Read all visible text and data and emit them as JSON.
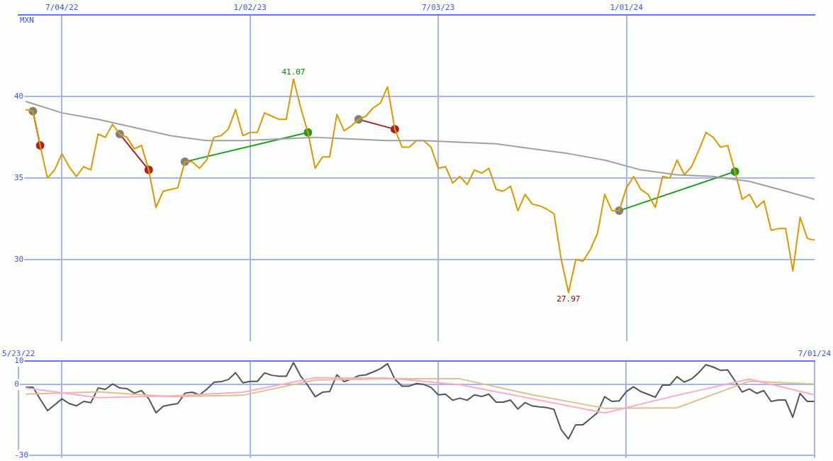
{
  "chart_data": [
    {
      "type": "line",
      "ylabel": "MXN",
      "grid": true,
      "marker": "none",
      "line_style": "solid",
      "x": [
        "2022-05-30",
        "2022-06-06",
        "2022-06-13",
        "2022-06-20",
        "2022-06-27",
        "2022-07-04",
        "2022-07-11",
        "2022-07-18",
        "2022-07-25",
        "2022-08-01",
        "2022-08-08",
        "2022-08-15",
        "2022-08-22",
        "2022-08-29",
        "2022-09-05",
        "2022-09-12",
        "2022-09-19",
        "2022-09-26",
        "2022-10-03",
        "2022-10-10",
        "2022-10-17",
        "2022-10-24",
        "2022-10-31",
        "2022-11-07",
        "2022-11-14",
        "2022-11-21",
        "2022-11-28",
        "2022-12-05",
        "2022-12-12",
        "2022-12-19",
        "2022-12-26",
        "2023-01-02",
        "2023-01-09",
        "2023-01-16",
        "2023-01-23",
        "2023-01-30",
        "2023-02-06",
        "2023-02-13",
        "2023-02-20",
        "2023-02-27",
        "2023-03-06",
        "2023-03-13",
        "2023-03-20",
        "2023-03-27",
        "2023-04-03",
        "2023-04-10",
        "2023-04-17",
        "2023-04-24",
        "2023-05-01",
        "2023-05-08",
        "2023-05-15",
        "2023-05-22",
        "2023-05-29",
        "2023-06-05",
        "2023-06-12",
        "2023-06-19",
        "2023-06-26",
        "2023-07-03",
        "2023-07-10",
        "2023-07-17",
        "2023-07-24",
        "2023-07-31",
        "2023-08-07",
        "2023-08-14",
        "2023-08-21",
        "2023-08-28",
        "2023-09-04",
        "2023-09-11",
        "2023-09-18",
        "2023-09-25",
        "2023-10-02",
        "2023-10-09",
        "2023-10-16",
        "2023-10-23",
        "2023-10-30",
        "2023-11-06",
        "2023-11-13",
        "2023-11-20",
        "2023-11-27",
        "2023-12-04",
        "2023-12-11",
        "2023-12-18",
        "2023-12-25",
        "2024-01-01",
        "2024-01-08",
        "2024-01-15",
        "2024-01-22",
        "2024-01-29",
        "2024-02-05",
        "2024-02-12",
        "2024-02-19",
        "2024-02-26",
        "2024-03-04",
        "2024-03-11",
        "2024-03-18",
        "2024-03-25",
        "2024-04-01",
        "2024-04-08",
        "2024-04-15",
        "2024-04-22",
        "2024-04-29",
        "2024-05-06",
        "2024-05-13",
        "2024-05-20",
        "2024-05-27",
        "2024-06-03",
        "2024-06-10",
        "2024-06-17",
        "2024-06-24",
        "2024-07-01"
      ],
      "series": [
        {
          "color": "#a0a0a0",
          "x": [
            "2022-05-30",
            "2022-07-04",
            "2022-08-08",
            "2022-09-12",
            "2022-10-17",
            "2022-11-21",
            "2022-12-26",
            "2023-01-30",
            "2023-03-06",
            "2023-04-10",
            "2023-05-15",
            "2023-06-19",
            "2023-07-24",
            "2023-08-28",
            "2023-10-02",
            "2023-11-06",
            "2023-12-11",
            "2024-01-15",
            "2024-02-19",
            "2024-03-25",
            "2024-04-29",
            "2024-06-03",
            "2024-07-01"
          ],
          "values": [
            39.7,
            39.0,
            38.6,
            38.1,
            37.6,
            37.3,
            37.3,
            37.4,
            37.5,
            37.4,
            37.3,
            37.3,
            37.2,
            37.1,
            36.8,
            36.5,
            36.1,
            35.5,
            35.2,
            35.1,
            34.8,
            34.2,
            33.7
          ]
        },
        {
          "color": "#dd9900",
          "values": [
            39.2,
            39.1,
            37.0,
            35.0,
            35.5,
            36.5,
            35.7,
            35.1,
            35.7,
            35.5,
            37.7,
            37.5,
            38.3,
            37.7,
            37.5,
            36.8,
            37.0,
            35.5,
            33.2,
            34.2,
            34.3,
            34.4,
            36.0,
            36.0,
            35.6,
            36.1,
            37.5,
            37.6,
            38.0,
            39.2,
            37.6,
            37.8,
            37.8,
            39.0,
            38.8,
            38.6,
            38.6,
            41.07,
            39.3,
            37.8,
            35.6,
            36.3,
            36.3,
            38.9,
            37.9,
            38.2,
            38.6,
            38.8,
            39.3,
            39.6,
            40.6,
            38.0,
            36.9,
            36.9,
            37.3,
            37.3,
            36.9,
            35.6,
            35.7,
            34.7,
            35.1,
            34.6,
            35.5,
            35.3,
            35.6,
            34.3,
            34.2,
            34.5,
            33.0,
            34.0,
            33.4,
            33.3,
            33.1,
            32.8,
            30.0,
            27.97,
            30.0,
            29.9,
            30.6,
            31.6,
            34.0,
            33.0,
            33.0,
            34.4,
            35.1,
            34.3,
            34.0,
            33.2,
            35.1,
            35.0,
            36.1,
            35.2,
            35.7,
            36.7,
            37.8,
            37.5,
            36.9,
            37.0,
            35.4,
            33.7,
            34.0,
            33.2,
            33.6,
            31.8,
            31.9,
            31.9,
            29.3,
            32.6,
            31.3,
            31.2
          ]
        },
        {
          "color": "#aa2222",
          "marker": "circle",
          "colors": [
            "#808080",
            "#aa2222"
          ],
          "x": [
            "2022-06-06",
            "2022-06-13"
          ],
          "values": [
            39.1,
            37.0
          ]
        },
        {
          "color": "#aa2222",
          "marker": "circle",
          "colors": [
            "#808080",
            "#aa2222"
          ],
          "x": [
            "2022-08-29",
            "2022-09-26"
          ],
          "values": [
            37.7,
            35.5
          ]
        },
        {
          "color": "#229922",
          "marker": "circle",
          "colors": [
            "#808080",
            "#229922"
          ],
          "x": [
            "2022-10-31",
            "2023-02-27"
          ],
          "values": [
            36.0,
            37.8
          ]
        },
        {
          "color": "#aa2222",
          "marker": "circle",
          "colors": [
            "#808080",
            "#aa2222"
          ],
          "x": [
            "2023-04-17",
            "2023-05-22"
          ],
          "values": [
            38.6,
            38.0
          ]
        },
        {
          "color": "#229922",
          "marker": "circle",
          "colors": [
            "#808080",
            "#229922"
          ],
          "x": [
            "2023-12-25",
            "2024-04-15"
          ],
          "values": [
            33.0,
            35.4
          ]
        }
      ],
      "xlim": [
        "2022-05-23",
        "2024-07-01"
      ],
      "xticks": [
        {
          "value": "2022-07-04",
          "label": "7/04/22"
        },
        {
          "value": "2023-01-02",
          "label": "1/02/23"
        },
        {
          "value": "2023-07-03",
          "label": "7/03/23"
        },
        {
          "value": "2024-01-01",
          "label": "1/01/24"
        }
      ],
      "ylim": [
        25,
        45
      ],
      "yticks": [
        30,
        35,
        40
      ],
      "annotations": [
        {
          "text": "41.07",
          "x": "2023-02-13",
          "y": 41.07
        },
        {
          "text": "27.97",
          "x": "2023-11-06",
          "y": 27.97
        }
      ]
    },
    {
      "type": "line",
      "grid": true,
      "marker": "none",
      "line_style": "solid",
      "x": [
        "2022-05-30",
        "2022-06-06",
        "2022-06-13",
        "2022-06-20",
        "2022-06-27",
        "2022-07-04",
        "2022-07-11",
        "2022-07-18",
        "2022-07-25",
        "2022-08-01",
        "2022-08-08",
        "2022-08-15",
        "2022-08-22",
        "2022-08-29",
        "2022-09-05",
        "2022-09-12",
        "2022-09-19",
        "2022-09-26",
        "2022-10-03",
        "2022-10-10",
        "2022-10-17",
        "2022-10-24",
        "2022-10-31",
        "2022-11-07",
        "2022-11-14",
        "2022-11-21",
        "2022-11-28",
        "2022-12-05",
        "2022-12-12",
        "2022-12-19",
        "2022-12-26",
        "2023-01-02",
        "2023-01-09",
        "2023-01-16",
        "2023-01-23",
        "2023-01-30",
        "2023-02-06",
        "2023-02-13",
        "2023-02-20",
        "2023-02-27",
        "2023-03-06",
        "2023-03-13",
        "2023-03-20",
        "2023-03-27",
        "2023-04-03",
        "2023-04-10",
        "2023-04-17",
        "2023-04-24",
        "2023-05-01",
        "2023-05-08",
        "2023-05-15",
        "2023-05-22",
        "2023-05-29",
        "2023-06-05",
        "2023-06-12",
        "2023-06-19",
        "2023-06-26",
        "2023-07-03",
        "2023-07-10",
        "2023-07-17",
        "2023-07-24",
        "2023-07-31",
        "2023-08-07",
        "2023-08-14",
        "2023-08-21",
        "2023-08-28",
        "2023-09-04",
        "2023-09-11",
        "2023-09-18",
        "2023-09-25",
        "2023-10-02",
        "2023-10-09",
        "2023-10-16",
        "2023-10-23",
        "2023-10-30",
        "2023-11-06",
        "2023-11-13",
        "2023-11-20",
        "2023-11-27",
        "2023-12-04",
        "2023-12-11",
        "2023-12-18",
        "2023-12-25",
        "2024-01-01",
        "2024-01-08",
        "2024-01-15",
        "2024-01-22",
        "2024-01-29",
        "2024-02-05",
        "2024-02-12",
        "2024-02-19",
        "2024-02-26",
        "2024-03-04",
        "2024-03-11",
        "2024-03-18",
        "2024-03-25",
        "2024-04-01",
        "2024-04-08",
        "2024-04-15",
        "2024-04-22",
        "2024-04-29",
        "2024-05-06",
        "2024-05-13",
        "2024-05-20",
        "2024-05-27",
        "2024-06-03",
        "2024-06-10",
        "2024-06-17",
        "2024-06-24",
        "2024-07-01"
      ],
      "series": [
        {
          "color": "#ffaacc",
          "x": [
            "2022-05-30",
            "2022-08-08",
            "2022-10-17",
            "2022-12-26",
            "2023-03-06",
            "2023-05-15",
            "2023-07-24",
            "2023-10-02",
            "2023-12-11",
            "2024-02-19",
            "2024-04-29",
            "2024-07-01"
          ],
          "values": [
            -1.4,
            -5.5,
            -4.8,
            -3.2,
            3.0,
            2.8,
            0.0,
            -6.0,
            -12.0,
            -4.5,
            2.4,
            -4.3
          ]
        },
        {
          "color": "#ddc090",
          "x": [
            "2022-05-30",
            "2022-08-08",
            "2022-10-17",
            "2022-12-26",
            "2023-03-06",
            "2023-05-15",
            "2023-07-24",
            "2023-10-02",
            "2023-12-11",
            "2024-02-19",
            "2024-04-29",
            "2024-07-01"
          ],
          "values": [
            -4.0,
            -3.0,
            -5.1,
            -4.5,
            2.0,
            2.5,
            2.5,
            -4.3,
            -10.0,
            -9.8,
            1.5,
            0.3
          ]
        },
        {
          "color": "#555555",
          "values": [
            -1.1,
            -1.1,
            -6.2,
            -11.0,
            -8.5,
            -6.0,
            -8.0,
            -9.0,
            -7.1,
            -7.6,
            -1.4,
            -2.0,
            0.3,
            -1.4,
            -1.7,
            -3.6,
            -2.5,
            -6.0,
            -11.9,
            -9.1,
            -8.5,
            -8.0,
            -3.6,
            -3.2,
            -4.3,
            -2.0,
            1.0,
            1.3,
            2.2,
            5.1,
            0.8,
            1.4,
            1.4,
            5.0,
            4.0,
            3.6,
            3.6,
            9.4,
            3.6,
            -0.4,
            -5.1,
            -3.2,
            -2.9,
            4.2,
            1.3,
            2.4,
            3.8,
            4.2,
            5.4,
            6.8,
            8.9,
            2.4,
            -0.6,
            -0.6,
            0.5,
            0.1,
            -1.1,
            -4.3,
            -4.0,
            -6.6,
            -5.7,
            -6.6,
            -4.3,
            -5.0,
            -4.0,
            -7.4,
            -7.4,
            -6.5,
            -10.3,
            -7.6,
            -9.0,
            -9.4,
            -9.7,
            -10.5,
            -19.1,
            -23.0,
            -17.0,
            -17.0,
            -14.5,
            -11.9,
            -5.1,
            -7.1,
            -6.9,
            -2.9,
            -0.9,
            -2.9,
            -4.1,
            -5.3,
            -0.2,
            -0.2,
            3.4,
            1.1,
            2.4,
            5.1,
            8.5,
            7.5,
            6.1,
            6.3,
            1.7,
            -3.1,
            -1.8,
            -3.7,
            -2.5,
            -7.1,
            -6.5,
            -6.5,
            -13.8,
            -3.7,
            -7.1,
            -7.1
          ]
        }
      ],
      "xlim": [
        "2022-05-23",
        "2024-07-01"
      ],
      "xticks": [
        {
          "value": "2022-05-23",
          "label": "5/23/22"
        },
        {
          "value": "2022-07-04",
          "label": null
        },
        {
          "value": "2023-01-02",
          "label": null
        },
        {
          "value": "2023-07-03",
          "label": null
        },
        {
          "value": "2024-01-01",
          "label": null
        },
        {
          "value": "2024-07-01",
          "label": "7/01/24"
        }
      ],
      "ylim": [
        -31,
        10
      ],
      "yticks": [
        10,
        0,
        -30
      ]
    }
  ]
}
